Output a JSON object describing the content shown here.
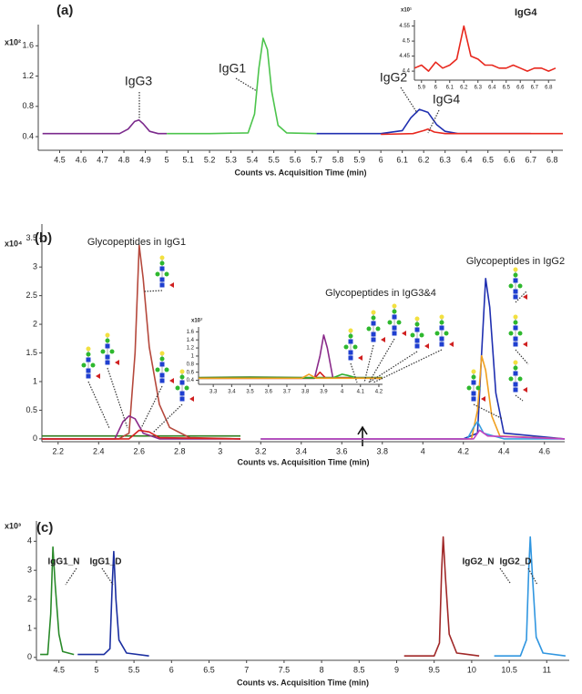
{
  "chart_data": [
    {
      "type": "line",
      "panel_label": "(a)",
      "multiplier": "x10²",
      "xlabel": "Counts vs. Acquisition Time (min)",
      "xlim": [
        4.4,
        6.85
      ],
      "ylim": [
        0.22,
        1.88
      ],
      "xticks": [
        4.5,
        4.6,
        4.7,
        4.8,
        4.9,
        5,
        5.1,
        5.2,
        5.3,
        5.4,
        5.5,
        5.6,
        5.7,
        5.8,
        5.9,
        6,
        6.1,
        6.2,
        6.3,
        6.4,
        6.5,
        6.6,
        6.7,
        6.8
      ],
      "yticks": [
        0.4,
        0.8,
        1.2,
        1.6
      ],
      "annotations": [
        "IgG3",
        "IgG1",
        "IgG2",
        "IgG4"
      ],
      "series": [
        {
          "color": "#7b2a8c",
          "x": [
            4.42,
            4.6,
            4.78,
            4.82,
            4.85,
            4.87,
            4.89,
            4.92,
            4.96,
            5.0
          ],
          "values": [
            0.44,
            0.44,
            0.44,
            0.5,
            0.6,
            0.62,
            0.57,
            0.47,
            0.44,
            0.44
          ]
        },
        {
          "color": "#4cc44c",
          "x": [
            5.0,
            5.2,
            5.38,
            5.41,
            5.43,
            5.45,
            5.47,
            5.49,
            5.52,
            5.56,
            5.7
          ],
          "values": [
            0.44,
            0.44,
            0.45,
            0.7,
            1.3,
            1.7,
            1.55,
            1.0,
            0.55,
            0.45,
            0.44
          ]
        },
        {
          "color": "#1f2fb0",
          "x": [
            5.7,
            6.0,
            6.1,
            6.14,
            6.18,
            6.22,
            6.26,
            6.3,
            6.36,
            6.7
          ],
          "values": [
            0.44,
            0.44,
            0.48,
            0.65,
            0.76,
            0.72,
            0.56,
            0.47,
            0.44,
            0.44
          ]
        },
        {
          "color": "#e8281e",
          "x": [
            6.0,
            6.15,
            6.2,
            6.22,
            6.25,
            6.3,
            6.7,
            6.85
          ],
          "values": [
            0.43,
            0.44,
            0.48,
            0.5,
            0.46,
            0.44,
            0.44,
            0.44
          ]
        }
      ]
    },
    {
      "type": "line",
      "title": "IgG4",
      "multiplier": "x10¹",
      "xlim": [
        5.85,
        6.85
      ],
      "ylim": [
        4.37,
        4.57
      ],
      "xticks": [
        5.9,
        6,
        6.1,
        6.2,
        6.3,
        6.4,
        6.5,
        6.6,
        6.7,
        6.8
      ],
      "yticks": [
        4.4,
        4.45,
        4.5,
        4.55
      ],
      "series": [
        {
          "color": "#e8281e",
          "x": [
            5.85,
            5.9,
            5.95,
            6.0,
            6.05,
            6.1,
            6.15,
            6.2,
            6.25,
            6.3,
            6.35,
            6.4,
            6.45,
            6.5,
            6.55,
            6.6,
            6.65,
            6.7,
            6.75,
            6.8,
            6.85
          ],
          "values": [
            4.41,
            4.42,
            4.4,
            4.43,
            4.41,
            4.42,
            4.44,
            4.55,
            4.45,
            4.44,
            4.42,
            4.42,
            4.41,
            4.41,
            4.42,
            4.41,
            4.4,
            4.41,
            4.41,
            4.4,
            4.41
          ]
        }
      ]
    },
    {
      "type": "line",
      "panel_label": "(b)",
      "multiplier": "x10⁴",
      "xlabel": "Counts vs. Acquisition Time (min)",
      "xlim": [
        2.12,
        4.7
      ],
      "ylim": [
        -0.05,
        3.75
      ],
      "xticks": [
        2.2,
        2.4,
        2.6,
        2.8,
        3,
        3.2,
        3.4,
        3.6,
        3.8,
        4,
        4.2,
        4.4,
        4.6
      ],
      "yticks": [
        0,
        0.5,
        1,
        1.5,
        2,
        2.5,
        3,
        3.5
      ],
      "annotations": [
        "Glycopeptides in IgG1",
        "Glycopeptides in IgG2",
        "Glycopeptides in IgG3&4"
      ],
      "series": [
        {
          "color": "#2e7d1e",
          "x": [
            2.12,
            2.3,
            2.5,
            3.1
          ],
          "values": [
            0.05,
            0.05,
            0.05,
            0.05
          ]
        },
        {
          "color": "#b5483c",
          "x": [
            2.12,
            2.5,
            2.55,
            2.58,
            2.6,
            2.62,
            2.65,
            2.7,
            2.75,
            2.85,
            3.1
          ],
          "values": [
            0,
            0,
            0.1,
            1.5,
            3.38,
            2.8,
            1.6,
            0.6,
            0.2,
            0.02,
            0
          ]
        },
        {
          "color": "#8a2a8a",
          "x": [
            2.12,
            2.48,
            2.52,
            2.55,
            2.58,
            2.62,
            2.7,
            3.1
          ],
          "values": [
            0,
            0,
            0.3,
            0.4,
            0.35,
            0.1,
            0,
            0
          ]
        },
        {
          "color": "#d62020",
          "x": [
            2.12,
            2.55,
            2.6,
            2.65,
            2.7,
            3.1
          ],
          "values": [
            0,
            0,
            0.15,
            0.12,
            0.02,
            0
          ]
        },
        {
          "color": "#1f2fb0",
          "x": [
            3.2,
            4.2,
            4.27,
            4.29,
            4.31,
            4.33,
            4.36,
            4.4,
            4.7
          ],
          "values": [
            0,
            0,
            0.1,
            1.5,
            2.8,
            2.3,
            0.8,
            0.1,
            0
          ]
        },
        {
          "color": "#f0a020",
          "x": [
            3.2,
            4.24,
            4.27,
            4.29,
            4.31,
            4.34,
            4.38,
            4.7
          ],
          "values": [
            0,
            0,
            0.5,
            1.45,
            1.2,
            0.4,
            0.05,
            0
          ]
        },
        {
          "color": "#3aa0e0",
          "x": [
            3.2,
            4.22,
            4.25,
            4.27,
            4.3,
            4.4,
            4.7
          ],
          "values": [
            0,
            0,
            0.2,
            0.3,
            0.1,
            0,
            0
          ]
        },
        {
          "color": "#c040c0",
          "x": [
            3.2,
            4.25,
            4.28,
            4.32,
            4.7
          ],
          "values": [
            0,
            0,
            0.15,
            0.05,
            0
          ]
        }
      ]
    },
    {
      "type": "line",
      "multiplier": "x10⁷",
      "xlim": [
        3.22,
        4.22
      ],
      "ylim": [
        0.3,
        1.72
      ],
      "xticks": [
        3.3,
        3.4,
        3.5,
        3.6,
        3.7,
        3.8,
        3.9,
        4,
        4.1,
        4.2
      ],
      "yticks": [
        0.4,
        0.6,
        0.8,
        1,
        1.2,
        1.4,
        1.6
      ],
      "series": [
        {
          "color": "#2e7d1e",
          "x": [
            3.22,
            3.5,
            3.8,
            4.22
          ],
          "values": [
            0.47,
            0.48,
            0.47,
            0.47
          ]
        },
        {
          "color": "#8a2a8a",
          "x": [
            3.22,
            3.85,
            3.88,
            3.9,
            3.92,
            3.95,
            4.22
          ],
          "values": [
            0.45,
            0.45,
            1.0,
            1.52,
            1.2,
            0.46,
            0.45
          ]
        },
        {
          "color": "#d62020",
          "x": [
            3.22,
            3.85,
            3.88,
            3.91,
            4.22
          ],
          "values": [
            0.45,
            0.45,
            0.6,
            0.46,
            0.45
          ]
        },
        {
          "color": "#30b030",
          "x": [
            3.22,
            3.95,
            4.0,
            4.03,
            4.08,
            4.22
          ],
          "values": [
            0.45,
            0.46,
            0.55,
            0.52,
            0.46,
            0.45
          ]
        },
        {
          "color": "#f0a020",
          "x": [
            3.22,
            3.78,
            3.82,
            3.86,
            4.22
          ],
          "values": [
            0.45,
            0.45,
            0.55,
            0.45,
            0.45
          ]
        }
      ]
    },
    {
      "type": "line",
      "panel_label": "(c)",
      "multiplier": "x10³",
      "xlabel": "Counts vs. Acquisition Time (min)",
      "xlim": [
        4.2,
        11.3
      ],
      "ylim": [
        -0.1,
        4.7
      ],
      "xticks": [
        4.5,
        5,
        5.5,
        6,
        6.5,
        7,
        7.5,
        8,
        8.5,
        9,
        9.5,
        10,
        10.5,
        11
      ],
      "yticks": [
        0,
        1,
        2,
        3,
        4
      ],
      "annotations": [
        "IgG1_N",
        "IgG1_D",
        "IgG2_N",
        "IgG2_D"
      ],
      "series": [
        {
          "color": "#2a8a2a",
          "x": [
            4.25,
            4.35,
            4.39,
            4.42,
            4.45,
            4.5,
            4.55,
            4.7
          ],
          "values": [
            0.1,
            0.1,
            1.5,
            3.8,
            2.5,
            0.8,
            0.2,
            0.1
          ]
        },
        {
          "color": "#1a2ea0",
          "x": [
            4.75,
            5.1,
            5.18,
            5.21,
            5.23,
            5.26,
            5.3,
            5.4,
            5.7
          ],
          "values": [
            0.1,
            0.1,
            0.3,
            2.5,
            3.65,
            2.0,
            0.6,
            0.15,
            0.05
          ]
        },
        {
          "color": "#a02828",
          "x": [
            9.1,
            9.5,
            9.57,
            9.6,
            9.62,
            9.65,
            9.7,
            9.8,
            10.1
          ],
          "values": [
            0.05,
            0.05,
            0.5,
            3,
            4.15,
            2.8,
            0.8,
            0.15,
            0.05
          ]
        },
        {
          "color": "#3096e0",
          "x": [
            10.3,
            10.65,
            10.73,
            10.76,
            10.78,
            10.81,
            10.86,
            10.95,
            11.25
          ],
          "values": [
            0.05,
            0.05,
            0.6,
            3,
            4.15,
            2.8,
            0.7,
            0.15,
            0.05
          ]
        }
      ]
    }
  ]
}
